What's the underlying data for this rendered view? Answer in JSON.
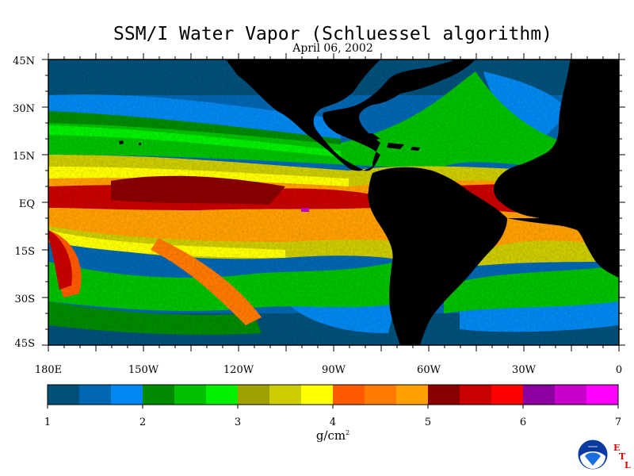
{
  "title": "SSM/I Water Vapor (Schluessel algorithm)",
  "subtitle": "April 06, 2002",
  "lat_labels": [
    "45N",
    "30N",
    "15N",
    "EQ",
    "15S",
    "30S",
    "45S"
  ],
  "lon_labels": [
    "180E",
    "150W",
    "120W",
    "90W",
    "60W",
    "30W",
    "0"
  ],
  "colorbar": {
    "colors": [
      "#00507a",
      "#0066b0",
      "#0088f0",
      "#008a00",
      "#00c000",
      "#00f000",
      "#a0a000",
      "#cccc00",
      "#ffff00",
      "#ff5a00",
      "#ff7a00",
      "#ffa000",
      "#8a0000",
      "#c80000",
      "#ff0000",
      "#8c00a0",
      "#c800c8",
      "#ff00ff"
    ],
    "tick_labels": [
      "1",
      "2",
      "3",
      "4",
      "5",
      "6",
      "7"
    ],
    "units": "g/cm",
    "units_exponent": "2"
  },
  "logo": {
    "name": "NOAA",
    "letters": [
      "E",
      "T",
      "L"
    ]
  }
}
